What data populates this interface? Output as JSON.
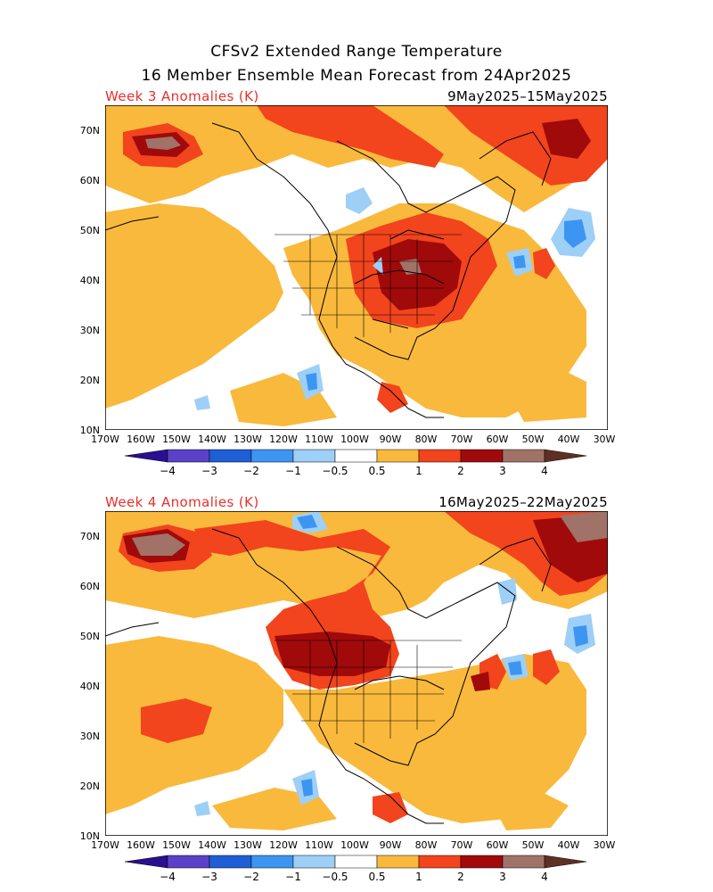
{
  "title_line1": "CFSv2 Extended Range Temperature",
  "title_line2": "16 Member Ensemble Mean Forecast from 24Apr2025",
  "panels": [
    {
      "label": "Week 3 Anomalies (K)",
      "dates": "9May2025–15May2025"
    },
    {
      "label": "Week 4 Anomalies (K)",
      "dates": "16May2025–22May2025"
    }
  ],
  "lat_labels": [
    "70N",
    "60N",
    "50N",
    "40N",
    "30N",
    "20N",
    "10N"
  ],
  "lon_labels": [
    "170W",
    "160W",
    "150W",
    "140W",
    "130W",
    "120W",
    "110W",
    "100W",
    "90W",
    "80W",
    "70W",
    "60W",
    "50W",
    "40W",
    "30W"
  ],
  "colorbar": {
    "labels": [
      "−4",
      "−3",
      "−2",
      "−1",
      "−0.5",
      "0.5",
      "1",
      "2",
      "3",
      "4"
    ],
    "colors": {
      "lt_m4": "#2a0f8f",
      "m4_m3": "#5a41c8",
      "m3_m2": "#1f5fd6",
      "m2_m1": "#3d95f2",
      "m1_m05": "#9dcff7",
      "neutral": "#ffffff",
      "p05_1": "#f9b93c",
      "p1_2": "#f2441d",
      "p2_3": "#a10a0a",
      "p3_4": "#a07268",
      "gt_4": "#5e3025"
    }
  }
}
